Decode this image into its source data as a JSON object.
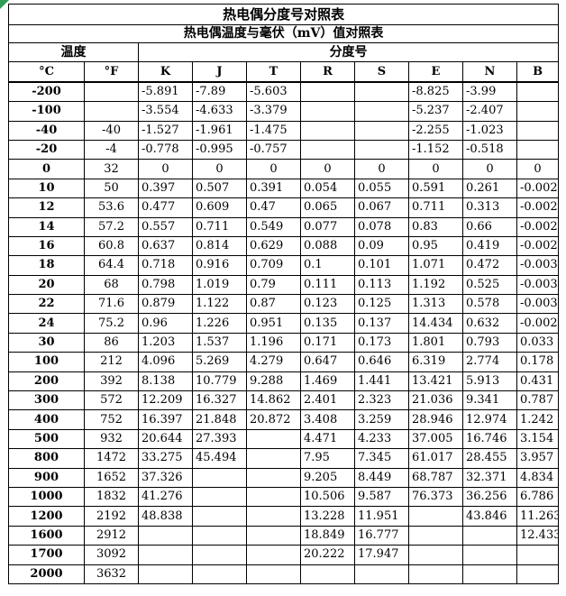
{
  "table": {
    "title": "热电偶分度号对照表",
    "subtitle": "热电偶温度与毫伏（mV）值对照表",
    "temp_header": "温度",
    "grade_header": "分度号",
    "unit_c": "°C",
    "unit_f": "°F",
    "columns": [
      "K",
      "J",
      "T",
      "R",
      "S",
      "E",
      "N",
      "B"
    ],
    "rows": [
      {
        "c": "-200",
        "f": "",
        "vals": [
          "-5.891",
          "-7.89",
          "-5.603",
          "",
          "",
          "-8.825",
          "-3.99",
          ""
        ]
      },
      {
        "c": "-100",
        "f": "",
        "vals": [
          "-3.554",
          "-4.633",
          "-3.379",
          "",
          "",
          "-5.237",
          "-2.407",
          ""
        ]
      },
      {
        "c": "-40",
        "f": "-40",
        "vals": [
          "-1.527",
          "-1.961",
          "-1.475",
          "",
          "",
          "-2.255",
          "-1.023",
          ""
        ]
      },
      {
        "c": "-20",
        "f": "-4",
        "vals": [
          "-0.778",
          "-0.995",
          "-0.757",
          "",
          "",
          "-1.152",
          "-0.518",
          ""
        ]
      },
      {
        "c": "0",
        "f": "32",
        "vals": [
          "0",
          "0",
          "0",
          "0",
          "0",
          "0",
          "0",
          "0"
        ]
      },
      {
        "c": "10",
        "f": "50",
        "vals": [
          "0.397",
          "0.507",
          "0.391",
          "0.054",
          "0.055",
          "0.591",
          "0.261",
          "-0.002"
        ]
      },
      {
        "c": "12",
        "f": "53.6",
        "vals": [
          "0.477",
          "0.609",
          "0.47",
          "0.065",
          "0.067",
          "0.711",
          "0.313",
          "-0.002"
        ]
      },
      {
        "c": "14",
        "f": "57.2",
        "vals": [
          "0.557",
          "0.711",
          "0.549",
          "0.077",
          "0.078",
          "0.83",
          "0.66",
          "-0.002"
        ]
      },
      {
        "c": "16",
        "f": "60.8",
        "vals": [
          "0.637",
          "0.814",
          "0.629",
          "0.088",
          "0.09",
          "0.95",
          "0.419",
          "-0.002"
        ]
      },
      {
        "c": "18",
        "f": "64.4",
        "vals": [
          "0.718",
          "0.916",
          "0.709",
          "0.1",
          "0.101",
          "1.071",
          "0.472",
          "-0.003"
        ]
      },
      {
        "c": "20",
        "f": "68",
        "vals": [
          "0.798",
          "1.019",
          "0.79",
          "0.111",
          "0.113",
          "1.192",
          "0.525",
          "-0.003"
        ]
      },
      {
        "c": "22",
        "f": "71.6",
        "vals": [
          "0.879",
          "1.122",
          "0.87",
          "0.123",
          "0.125",
          "1.313",
          "0.578",
          "-0.003"
        ]
      },
      {
        "c": "24",
        "f": "75.2",
        "vals": [
          "0.96",
          "1.226",
          "0.951",
          "0.135",
          "0.137",
          "14.434",
          "0.632",
          "-0.002"
        ]
      },
      {
        "c": "30",
        "f": "86",
        "vals": [
          "1.203",
          "1.537",
          "1.196",
          "0.171",
          "0.173",
          "1.801",
          "0.793",
          "0.033"
        ]
      },
      {
        "c": "100",
        "f": "212",
        "vals": [
          "4.096",
          "5.269",
          "4.279",
          "0.647",
          "0.646",
          "6.319",
          "2.774",
          "0.178"
        ]
      },
      {
        "c": "200",
        "f": "392",
        "vals": [
          "8.138",
          "10.779",
          "9.288",
          "1.469",
          "1.441",
          "13.421",
          "5.913",
          "0.431"
        ]
      },
      {
        "c": "300",
        "f": "572",
        "vals": [
          "12.209",
          "16.327",
          "14.862",
          "2.401",
          "2.323",
          "21.036",
          "9.341",
          "0.787"
        ]
      },
      {
        "c": "400",
        "f": "752",
        "vals": [
          "16.397",
          "21.848",
          "20.872",
          "3.408",
          "3.259",
          "28.946",
          "12.974",
          "1.242"
        ]
      },
      {
        "c": "500",
        "f": "932",
        "vals": [
          "20.644",
          "27.393",
          "",
          "4.471",
          "4.233",
          "37.005",
          "16.746",
          "3.154"
        ]
      },
      {
        "c": "800",
        "f": "1472",
        "vals": [
          "33.275",
          "45.494",
          "",
          "7.95",
          "7.345",
          "61.017",
          "28.455",
          "3.957"
        ]
      },
      {
        "c": "900",
        "f": "1652",
        "vals": [
          "37.326",
          "",
          "",
          "9.205",
          "8.449",
          "68.787",
          "32.371",
          "4.834"
        ]
      },
      {
        "c": "1000",
        "f": "1832",
        "vals": [
          "41.276",
          "",
          "",
          "10.506",
          "9.587",
          "76.373",
          "36.256",
          "6.786"
        ]
      },
      {
        "c": "1200",
        "f": "2192",
        "vals": [
          "48.838",
          "",
          "",
          "13.228",
          "11.951",
          "",
          "43.846",
          "11.263"
        ]
      },
      {
        "c": "1600",
        "f": "2912",
        "vals": [
          "",
          "",
          "",
          "18.849",
          "16.777",
          "",
          "",
          "12.433"
        ]
      },
      {
        "c": "1700",
        "f": "3092",
        "vals": [
          "",
          "",
          "",
          "20.222",
          "17.947",
          "",
          "",
          ""
        ]
      },
      {
        "c": "2000",
        "f": "3632",
        "vals": [
          "",
          "",
          "",
          "",
          "",
          "",
          "",
          ""
        ]
      }
    ]
  },
  "colors": {
    "corner_mark": "#2e9e55",
    "border": "#000000",
    "text": "#000000"
  }
}
